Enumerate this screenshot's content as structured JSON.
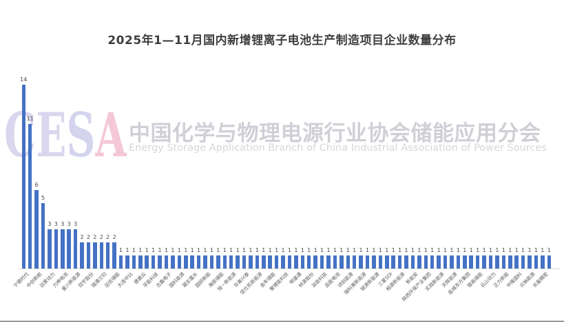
{
  "title": "2025年1—11月国内新增锂离子电池生产制造项目企业数量分布",
  "watermark": {
    "logo": "CESA",
    "logo_letters": [
      {
        "ch": "C",
        "color": "#d9d6ee"
      },
      {
        "ch": "E",
        "color": "#d9d6ee"
      },
      {
        "ch": "S",
        "color": "#d4d4ee"
      },
      {
        "ch": "A",
        "color": "#f4c8d8"
      }
    ],
    "cn": "中国化学与物理电源行业协会储能应用分会",
    "en": "Energy Storage Application Branch of China Industrial Association of Power Sources"
  },
  "chart_data": {
    "type": "bar",
    "title": "2025年1—11月国内新增锂离子电池生产制造项目企业数量分布",
    "bar_color": "#4472C4",
    "value_label_color": "#454545",
    "axis_label_color": "#595959",
    "axis_line_color": "#d9d9d9",
    "ylim": [
      0,
      14
    ],
    "grid": false,
    "legend": false,
    "data_labels": true,
    "x_label_interval": 2,
    "values": [
      14,
      11,
      6,
      5,
      3,
      3,
      3,
      3,
      3,
      2,
      2,
      2,
      2,
      2,
      2,
      1,
      1,
      1,
      1,
      1,
      1,
      1,
      1,
      1,
      1,
      1,
      1,
      1,
      1,
      1,
      1,
      1,
      1,
      1,
      1,
      1,
      1,
      1,
      1,
      1,
      1,
      1,
      1,
      1,
      1,
      1,
      1,
      1,
      1,
      1,
      1,
      1,
      1,
      1,
      1,
      1,
      1,
      1,
      1,
      1,
      1,
      1,
      1,
      1,
      1,
      1,
      1,
      1,
      1,
      1,
      1,
      1,
      1,
      1,
      1,
      1,
      1,
      1,
      1,
      1,
      1,
      1
    ],
    "x_labels": [
      "宁德时代",
      "中创新航",
      "远景动力",
      "力神电池",
      "星川新能源",
      "冠宇股份",
      "瑞浦兰钧",
      "运信储能",
      "大连中比",
      "德晨云",
      "孚能科技",
      "古鑫电子",
      "国科能源",
      "凝志蓬水",
      "国研新能",
      "海辰储能",
      "恒一新能源",
      "华美兴泰",
      "佳仕凯新能源",
      "金年储能",
      "聚锂能科技",
      "明基通",
      "林源股份",
      "柒能科技",
      "品能电池",
      "顷刻能源",
      "瑞科美新能源",
      "银源新能源",
      "三星SDI",
      "相源新能源",
      "新能安",
      "陕西环保产业集团",
      "实践新能源",
      "天辉能源",
      "盐城东方集团",
      "银高储能",
      "云山动力",
      "正力新能",
      "中隆国科",
      "众钠能源",
      "长盈精密"
    ]
  }
}
